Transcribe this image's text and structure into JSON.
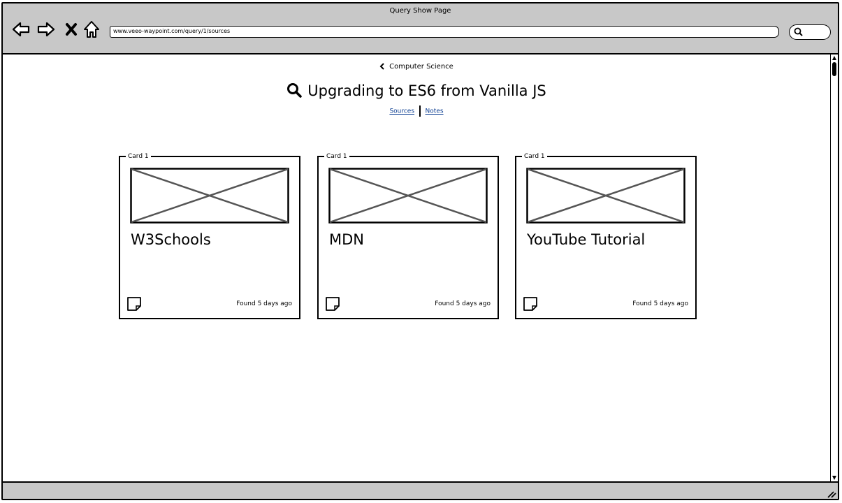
{
  "window": {
    "title": "Query Show Page"
  },
  "browser": {
    "url": "www.veeo-waypoint.com/query/1/sources",
    "nav_icons": [
      "back-icon",
      "forward-icon",
      "stop-icon",
      "home-icon"
    ],
    "search_icon": "search-icon"
  },
  "page": {
    "breadcrumb": "Computer Science",
    "title": "Upgrading to ES6 from Vanilla JS",
    "tabs": [
      {
        "label": "Sources"
      },
      {
        "label": "Notes"
      }
    ]
  },
  "cards": [
    {
      "legend": "Card 1",
      "title": "W3Schools",
      "found": "Found 5 days ago"
    },
    {
      "legend": "Card 1",
      "title": "MDN",
      "found": "Found 5 days ago"
    },
    {
      "legend": "Card 1",
      "title": "YouTube Tutorial",
      "found": "Found 5 days ago"
    }
  ]
}
